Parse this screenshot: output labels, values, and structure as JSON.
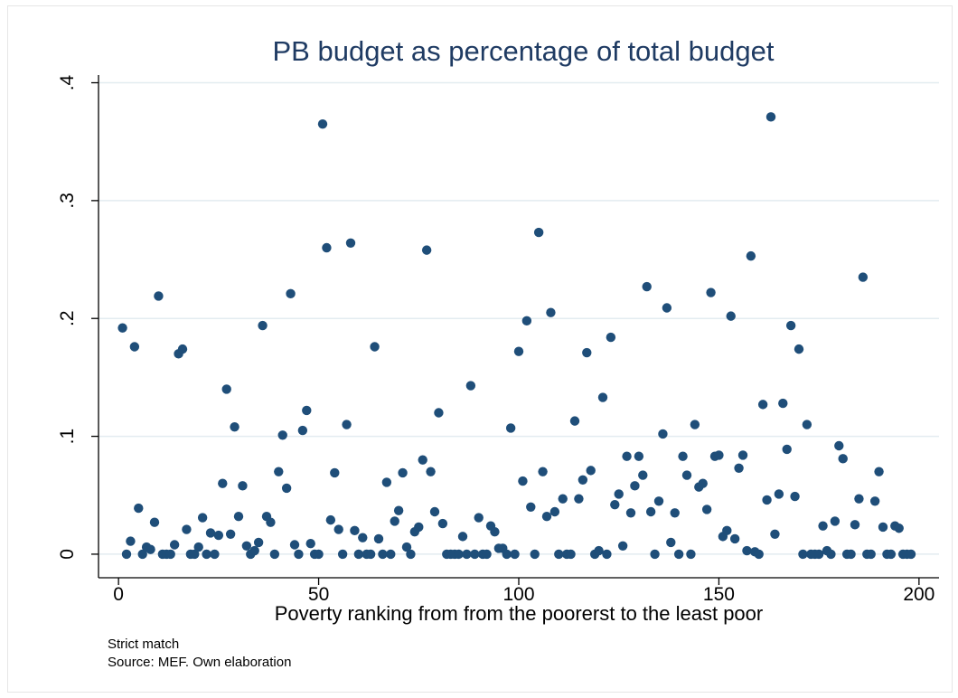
{
  "chart_data": {
    "type": "scatter",
    "title": "PB budget as percentage of total budget",
    "xlabel": "Poverty ranking from from the poorerst to the least poor",
    "ylabel": "",
    "xlim": [
      -5,
      205
    ],
    "ylim": [
      -0.02,
      0.405
    ],
    "xticks": [
      0,
      50,
      100,
      150,
      200
    ],
    "xtick_labels": [
      "0",
      "50",
      "100",
      "150",
      "200"
    ],
    "yticks": [
      0,
      0.1,
      0.2,
      0.3,
      0.4
    ],
    "ytick_labels": [
      "0",
      ".1",
      ".2",
      ".3",
      ".4"
    ],
    "grid": "horizontal",
    "notes": [
      "Strict match",
      "Source: MEF. Own elaboration"
    ],
    "marker_color": "#1f4e79",
    "title_color": "#1f3b63",
    "points": [
      [
        1,
        0.192
      ],
      [
        2,
        0
      ],
      [
        3,
        0.011
      ],
      [
        4,
        0.176
      ],
      [
        5,
        0.039
      ],
      [
        6,
        0
      ],
      [
        7,
        0.006
      ],
      [
        8,
        0.004
      ],
      [
        9,
        0.027
      ],
      [
        10,
        0.219
      ],
      [
        11,
        0
      ],
      [
        12,
        0
      ],
      [
        13,
        0
      ],
      [
        14,
        0.008
      ],
      [
        15,
        0.17
      ],
      [
        16,
        0.174
      ],
      [
        17,
        0.021
      ],
      [
        18,
        0
      ],
      [
        19,
        0
      ],
      [
        20,
        0.006
      ],
      [
        21,
        0.031
      ],
      [
        22,
        0
      ],
      [
        23,
        0.018
      ],
      [
        24,
        0
      ],
      [
        25,
        0.016
      ],
      [
        26,
        0.06
      ],
      [
        27,
        0.14
      ],
      [
        28,
        0.017
      ],
      [
        29,
        0.108
      ],
      [
        30,
        0.032
      ],
      [
        31,
        0.058
      ],
      [
        32,
        0.007
      ],
      [
        33,
        0
      ],
      [
        34,
        0.003
      ],
      [
        35,
        0.01
      ],
      [
        36,
        0.194
      ],
      [
        37,
        0.032
      ],
      [
        38,
        0.027
      ],
      [
        39,
        0
      ],
      [
        40,
        0.07
      ],
      [
        41,
        0.101
      ],
      [
        42,
        0.056
      ],
      [
        43,
        0.221
      ],
      [
        44,
        0.008
      ],
      [
        45,
        0
      ],
      [
        46,
        0.105
      ],
      [
        47,
        0.122
      ],
      [
        48,
        0.009
      ],
      [
        49,
        0
      ],
      [
        50,
        0
      ],
      [
        51,
        0.365
      ],
      [
        52,
        0.26
      ],
      [
        53,
        0.029
      ],
      [
        54,
        0.069
      ],
      [
        55,
        0.021
      ],
      [
        56,
        0
      ],
      [
        57,
        0.11
      ],
      [
        58,
        0.264
      ],
      [
        59,
        0.02
      ],
      [
        60,
        0
      ],
      [
        61,
        0.014
      ],
      [
        62,
        0
      ],
      [
        63,
        0
      ],
      [
        64,
        0.176
      ],
      [
        65,
        0.013
      ],
      [
        66,
        0
      ],
      [
        67,
        0.061
      ],
      [
        68,
        0
      ],
      [
        69,
        0.028
      ],
      [
        70,
        0.037
      ],
      [
        71,
        0.069
      ],
      [
        72,
        0.006
      ],
      [
        73,
        0
      ],
      [
        74,
        0.019
      ],
      [
        75,
        0.023
      ],
      [
        76,
        0.08
      ],
      [
        77,
        0.258
      ],
      [
        78,
        0.07
      ],
      [
        79,
        0.036
      ],
      [
        80,
        0.12
      ],
      [
        81,
        0.026
      ],
      [
        82,
        0
      ],
      [
        83,
        0
      ],
      [
        84,
        0
      ],
      [
        85,
        0
      ],
      [
        86,
        0.015
      ],
      [
        87,
        0
      ],
      [
        88,
        0.143
      ],
      [
        89,
        0
      ],
      [
        90,
        0.031
      ],
      [
        91,
        0
      ],
      [
        92,
        0
      ],
      [
        93,
        0.024
      ],
      [
        94,
        0.019
      ],
      [
        95,
        0.005
      ],
      [
        96,
        0.005
      ],
      [
        97,
        0
      ],
      [
        98,
        0.107
      ],
      [
        99,
        0
      ],
      [
        100,
        0.172
      ],
      [
        101,
        0.062
      ],
      [
        102,
        0.198
      ],
      [
        103,
        0.04
      ],
      [
        104,
        0
      ],
      [
        105,
        0.273
      ],
      [
        106,
        0.07
      ],
      [
        107,
        0.032
      ],
      [
        108,
        0.205
      ],
      [
        109,
        0.036
      ],
      [
        110,
        0
      ],
      [
        111,
        0.047
      ],
      [
        112,
        0
      ],
      [
        113,
        0
      ],
      [
        114,
        0.113
      ],
      [
        115,
        0.047
      ],
      [
        116,
        0.063
      ],
      [
        117,
        0.171
      ],
      [
        118,
        0.071
      ],
      [
        119,
        0
      ],
      [
        120,
        0.003
      ],
      [
        121,
        0.133
      ],
      [
        122,
        0
      ],
      [
        123,
        0.184
      ],
      [
        124,
        0.042
      ],
      [
        125,
        0.051
      ],
      [
        126,
        0.007
      ],
      [
        127,
        0.083
      ],
      [
        128,
        0.035
      ],
      [
        129,
        0.058
      ],
      [
        130,
        0.083
      ],
      [
        131,
        0.067
      ],
      [
        132,
        0.227
      ],
      [
        133,
        0.036
      ],
      [
        134,
        0
      ],
      [
        135,
        0.045
      ],
      [
        136,
        0.102
      ],
      [
        137,
        0.209
      ],
      [
        138,
        0.01
      ],
      [
        139,
        0.035
      ],
      [
        140,
        0
      ],
      [
        141,
        0.083
      ],
      [
        142,
        0.067
      ],
      [
        143,
        0
      ],
      [
        144,
        0.11
      ],
      [
        145,
        0.057
      ],
      [
        146,
        0.06
      ],
      [
        147,
        0.038
      ],
      [
        148,
        0.222
      ],
      [
        149,
        0.083
      ],
      [
        150,
        0.084
      ],
      [
        151,
        0.015
      ],
      [
        152,
        0.02
      ],
      [
        153,
        0.202
      ],
      [
        154,
        0.013
      ],
      [
        155,
        0.073
      ],
      [
        156,
        0.084
      ],
      [
        157,
        0.003
      ],
      [
        158,
        0.253
      ],
      [
        159,
        0.002
      ],
      [
        160,
        0
      ],
      [
        161,
        0.127
      ],
      [
        162,
        0.046
      ],
      [
        163,
        0.371
      ],
      [
        164,
        0.017
      ],
      [
        165,
        0.051
      ],
      [
        166,
        0.128
      ],
      [
        167,
        0.089
      ],
      [
        168,
        0.194
      ],
      [
        169,
        0.049
      ],
      [
        170,
        0.174
      ],
      [
        171,
        0
      ],
      [
        172,
        0.11
      ],
      [
        173,
        0
      ],
      [
        174,
        0
      ],
      [
        175,
        0
      ],
      [
        176,
        0.024
      ],
      [
        177,
        0.003
      ],
      [
        178,
        0
      ],
      [
        179,
        0.028
      ],
      [
        180,
        0.092
      ],
      [
        181,
        0.081
      ],
      [
        182,
        0
      ],
      [
        183,
        0
      ],
      [
        184,
        0.025
      ],
      [
        185,
        0.047
      ],
      [
        186,
        0.235
      ],
      [
        187,
        0
      ],
      [
        188,
        0
      ],
      [
        189,
        0.045
      ],
      [
        190,
        0.07
      ],
      [
        191,
        0.023
      ],
      [
        192,
        0
      ],
      [
        193,
        0
      ],
      [
        194,
        0.024
      ],
      [
        195,
        0.022
      ],
      [
        196,
        0
      ],
      [
        197,
        0
      ],
      [
        198,
        0
      ]
    ]
  }
}
